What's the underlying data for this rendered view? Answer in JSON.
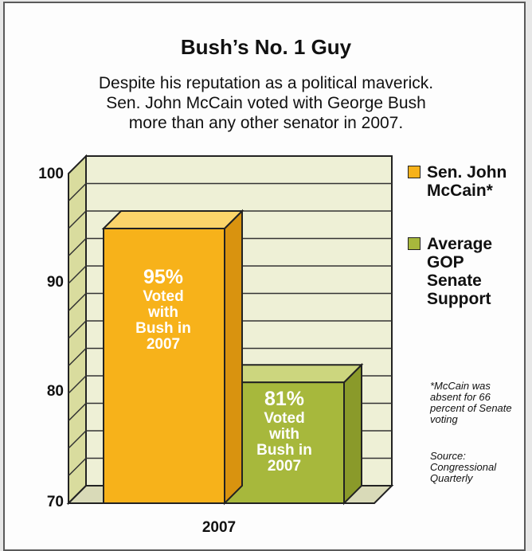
{
  "chart_data": {
    "type": "bar",
    "title": "Bush’s No. 1 Guy",
    "subtitle": "Despite his reputation as a political maverick. Sen. John McCain voted with George Bush more than any other senator in 2007.",
    "categories": [
      "2007"
    ],
    "series": [
      {
        "name": "Sen. John McCain*",
        "values": [
          95
        ],
        "value_label": "95%",
        "label_text": "Voted with Bush in 2007",
        "color": "#f7b21a"
      },
      {
        "name": "Average GOP Senate Support",
        "values": [
          81
        ],
        "value_label": "81%",
        "label_text": "Voted with Bush in 2007",
        "color": "#a7b83c"
      }
    ],
    "yticks": [
      100,
      90,
      80,
      70
    ],
    "ylim": [
      70,
      100
    ],
    "grid": true,
    "legend_position": "right",
    "footnote": "*McCain was absent for 66 percent of Senate voting",
    "source": "Source: Congressional Quarterly"
  }
}
